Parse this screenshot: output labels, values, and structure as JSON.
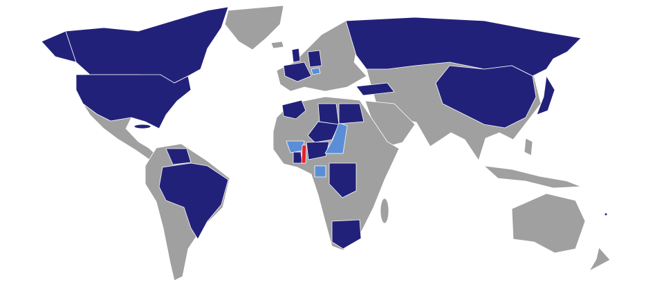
{
  "map": {
    "projection": "world",
    "colors": {
      "background": "#ffffff",
      "other": "#a0a0a0",
      "home": "#e8202a",
      "embassy": "#22217a",
      "accredited": "#5b8ed6",
      "border": "#ffffff"
    }
  }
}
